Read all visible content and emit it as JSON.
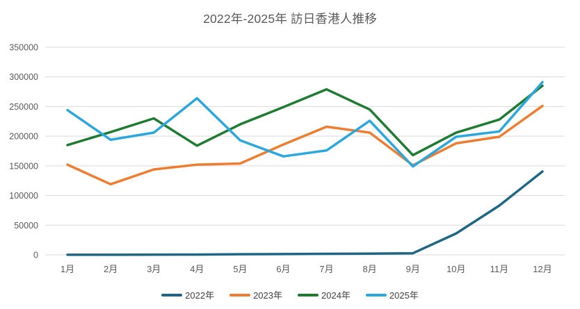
{
  "title": "2022年-2025年 訪日香港人推移",
  "chart_data": {
    "type": "line",
    "title": "2022年-2025年 訪日香港人推移",
    "categories": [
      "1月",
      "2月",
      "3月",
      "4月",
      "5月",
      "6月",
      "7月",
      "8月",
      "9月",
      "10月",
      "11月",
      "12月"
    ],
    "series": [
      {
        "name": "2022年",
        "color": "#1f6684",
        "values": [
          200,
          150,
          300,
          500,
          1000,
          1300,
          1700,
          2100,
          2700,
          36000,
          83000,
          140500
        ]
      },
      {
        "name": "2023年",
        "color": "#ed7d31",
        "values": [
          152000,
          119000,
          144000,
          152000,
          154000,
          186000,
          216000,
          206000,
          151000,
          188000,
          199000,
          251000
        ]
      },
      {
        "name": "2024年",
        "color": "#1e7b31",
        "values": [
          185000,
          207000,
          230000,
          184000,
          220000,
          249000,
          279000,
          245000,
          168000,
          206000,
          228000,
          285000
        ]
      },
      {
        "name": "2025年",
        "color": "#2ba7dd",
        "values": [
          244000,
          194000,
          206000,
          264000,
          193000,
          166000,
          176000,
          226000,
          149000,
          199000,
          208000,
          291000
        ]
      }
    ],
    "xlabel": "",
    "ylabel": "",
    "ylim": [
      0,
      350000
    ],
    "yticks": [
      0,
      50000,
      100000,
      150000,
      200000,
      250000,
      300000,
      350000
    ],
    "grid": true,
    "legend_position": "bottom",
    "gridline_color": "#d9d9d9",
    "axis_label_color": "#595959"
  }
}
